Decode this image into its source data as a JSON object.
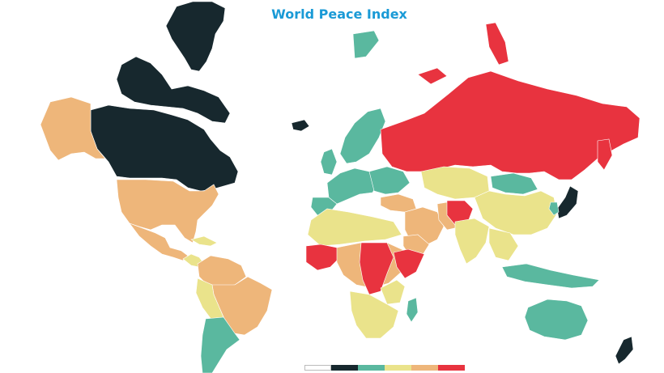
{
  "map": {
    "title": "World Peace Index",
    "title_color": "#1a9ad6",
    "colors": {
      "very_high": "#17282e",
      "high": "#5ab89f",
      "medium": "#eae38b",
      "low": "#eeb67a",
      "very_low": "#e8333f",
      "no_data": "#ffffff"
    }
  },
  "legend": {
    "swatches": [
      {
        "color": "#ffffff"
      },
      {
        "color": "#17282e"
      },
      {
        "color": "#5ab89f"
      },
      {
        "color": "#eae38b"
      },
      {
        "color": "#eeb67a"
      },
      {
        "color": "#e8333f"
      }
    ]
  }
}
